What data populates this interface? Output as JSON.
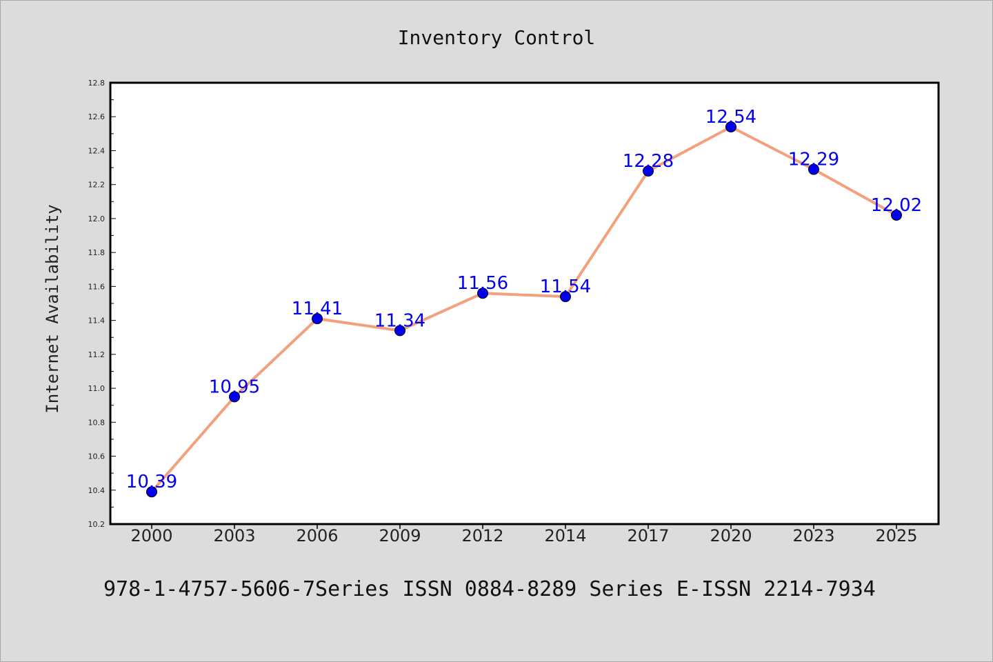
{
  "chart_data": {
    "type": "line",
    "title": "Inventory Control",
    "xlabel": "",
    "ylabel": "Internet Availability",
    "categories": [
      "2000",
      "2003",
      "2006",
      "2009",
      "2012",
      "2014",
      "2017",
      "2020",
      "2023",
      "2025"
    ],
    "series": [
      {
        "values": [
          10.39,
          10.95,
          11.41,
          11.34,
          11.56,
          11.54,
          12.28,
          12.54,
          12.29,
          12.02
        ],
        "line_color": "#f4a07c",
        "marker_color": "#0000ee"
      }
    ],
    "data_labels": [
      "10.39",
      "10.95",
      "11.41",
      "11.34",
      "11.56",
      "11.54",
      "12.28",
      "12.54",
      "12.29",
      "12.02"
    ],
    "data_label_color": "#0000ee",
    "ylim": [
      10.2,
      12.8
    ],
    "y_ticks": [
      "10.2",
      "10.4",
      "10.6",
      "10.8",
      "11.0",
      "11.2",
      "11.4",
      "11.6",
      "11.8",
      "12.0",
      "12.2",
      "12.4",
      "12.6",
      "12.8"
    ],
    "grid": false,
    "legend": "none"
  },
  "footer_text": "978-1-4757-5606-7Series ISSN 0884-8289 Series E-ISSN 2214-7934",
  "colors": {
    "background": "#dcdcdc",
    "plot_background": "#ffffff",
    "axis": "#000000"
  }
}
